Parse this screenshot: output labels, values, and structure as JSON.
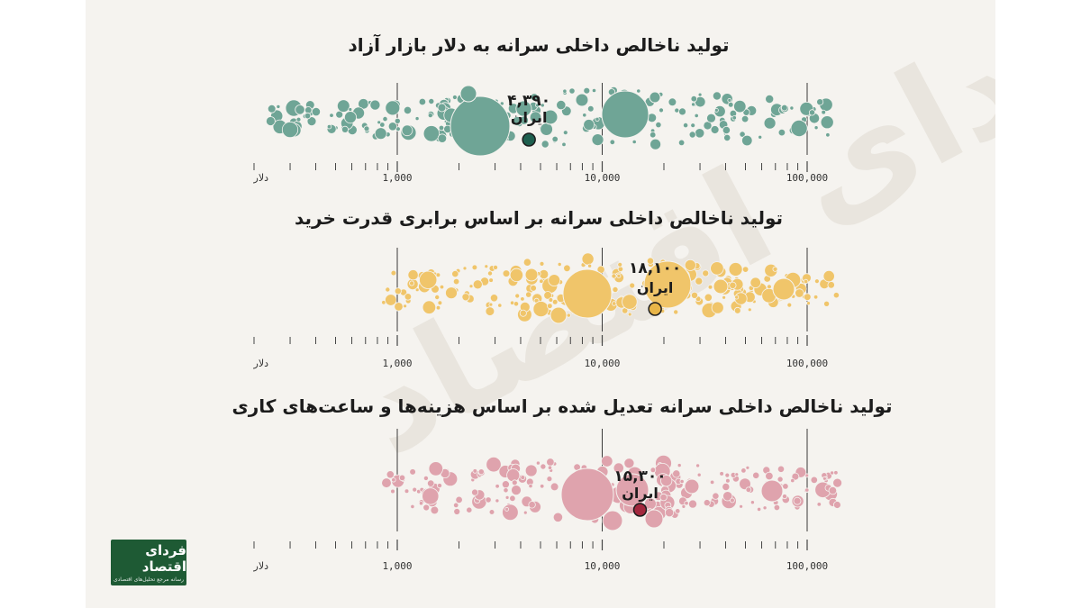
{
  "watermark": "فردای اقتصاد",
  "logo": {
    "name": "فردای اقتصاد",
    "tagline": "رسانه مرجع تحلیل‌های اقتصادی"
  },
  "axis": {
    "unit_label": "دلار",
    "tick_labels": [
      "1,000",
      "10,000",
      "100,000"
    ]
  },
  "chart_data": [
    {
      "type": "scatter",
      "title": "تولید ناخالص داخلی سرانه به دلار بازار آزاد",
      "color": "#6fa596",
      "highlight": {
        "name": "ایران",
        "value": 4390,
        "label": "۴,۳۹۰",
        "color": "#1e5f4e"
      },
      "xscale": "log",
      "xlim": [
        100,
        150000
      ],
      "xticks": [
        1000,
        10000,
        100000
      ],
      "grid": true
    },
    {
      "type": "scatter",
      "title": "تولید ناخالص داخلی سرانه بر اساس برابری قدرت خرید",
      "color": "#f0c56a",
      "highlight": {
        "name": "ایران",
        "value": 18100,
        "label": "۱۸,۱۰۰",
        "color": "#e8b548"
      },
      "xscale": "log",
      "xlim": [
        100,
        150000
      ],
      "xticks": [
        1000,
        10000,
        100000
      ],
      "grid": true
    },
    {
      "type": "scatter",
      "title": "تولید ناخالص داخلی سرانه تعدیل شده بر اساس هزینه‌ها و ساعت‌های کاری",
      "color": "#dfa3ad",
      "highlight": {
        "name": "ایران",
        "value": 15300,
        "label": "۱۵,۳۰۰",
        "color": "#a3283e"
      },
      "xscale": "log",
      "xlim": [
        100,
        150000
      ],
      "xticks": [
        1000,
        10000,
        100000
      ],
      "grid": true
    }
  ]
}
